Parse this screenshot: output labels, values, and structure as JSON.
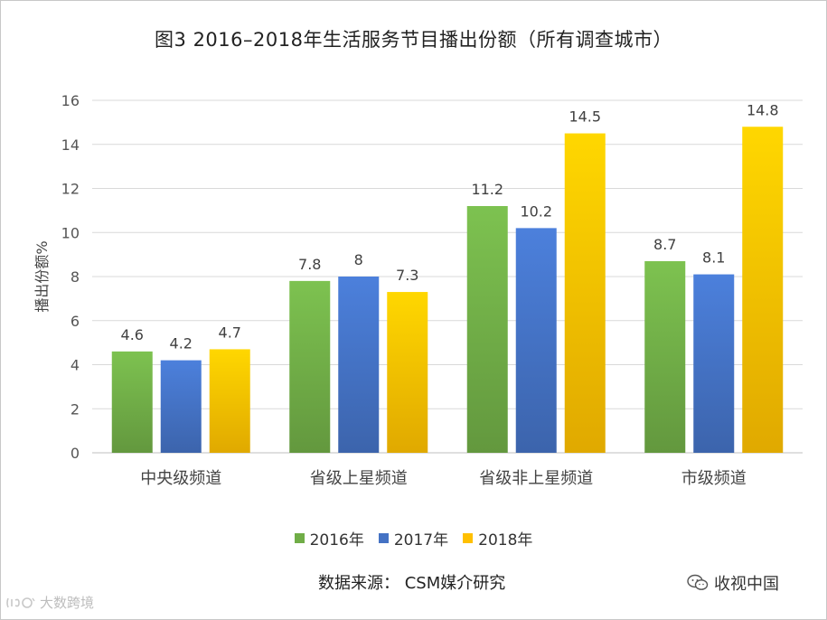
{
  "title": "图3  2016–2018年生活服务节目播出份额（所有调查城市）",
  "source": "数据来源：  CSM媒介研究",
  "wechat_account": "收视中国",
  "watermark": "大数跨境",
  "chart_data": {
    "type": "bar",
    "title": "图3  2016–2018年生活服务节目播出份额（所有调查城市）",
    "xlabel": "",
    "ylabel": "播出份额%",
    "ylim": [
      0,
      16
    ],
    "yticks": [
      0,
      2,
      4,
      6,
      8,
      10,
      12,
      14,
      16
    ],
    "grid": true,
    "legend_position": "bottom",
    "categories": [
      "中央级频道",
      "省级上星频道",
      "省级非上星频道",
      "市级频道"
    ],
    "series": [
      {
        "name": "2016年",
        "color": "#70ad47",
        "values": [
          4.6,
          7.8,
          11.2,
          8.7
        ]
      },
      {
        "name": "2017年",
        "color": "#4472c4",
        "values": [
          4.2,
          8,
          10.2,
          8.1
        ]
      },
      {
        "name": "2018年",
        "color": "#ffc000",
        "values": [
          4.7,
          7.3,
          14.5,
          14.8
        ]
      }
    ]
  }
}
